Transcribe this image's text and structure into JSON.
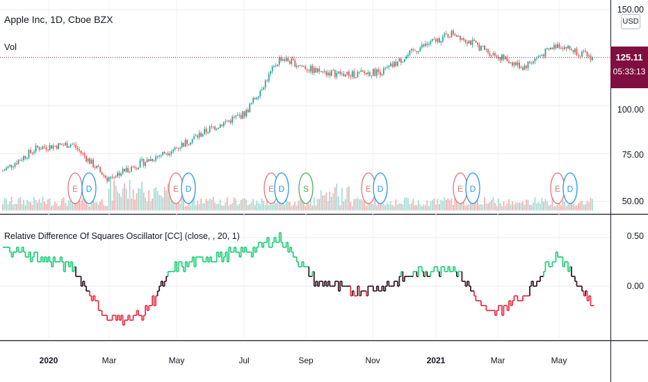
{
  "header": {
    "title": "Apple Inc, 1D, Cboe BZX",
    "volume_label": "Vol",
    "currency": "USD"
  },
  "price_axis": {
    "ticks": [
      "150.00",
      "125.11",
      "100.00",
      "75.00",
      "50.00"
    ],
    "current_price": "125.11",
    "countdown": "05:33:13"
  },
  "oscillator": {
    "title": "Relative Difference Of Squares Oscillator [CC] (close, , 20, 1)",
    "ticks": [
      "0.50",
      "0.00"
    ]
  },
  "x_axis": {
    "ticks": [
      {
        "label": "2020",
        "bold": true
      },
      {
        "label": "Mar",
        "bold": false
      },
      {
        "label": "May",
        "bold": false
      },
      {
        "label": "Jul",
        "bold": false
      },
      {
        "label": "Sep",
        "bold": false
      },
      {
        "label": "Nov",
        "bold": false
      },
      {
        "label": "2021",
        "bold": true
      },
      {
        "label": "Mar",
        "bold": false
      },
      {
        "label": "May",
        "bold": false
      }
    ]
  },
  "events": [
    "E",
    "D",
    "E",
    "D",
    "E",
    "D",
    "S",
    "E",
    "D",
    "E",
    "D",
    "E",
    "D"
  ],
  "colors": {
    "up": "#26a69a",
    "down": "#ef5350",
    "osc_up": "#26d07c",
    "osc_down": "#e8334a",
    "osc_neutral": "#3a1a2a",
    "tag": "#7f0f3e"
  },
  "chart_data": {
    "type": "line",
    "title": "Apple Inc, 1D, Cboe BZX",
    "x": [
      "2019-12",
      "2020-01",
      "2020-02",
      "2020-03",
      "2020-04",
      "2020-05",
      "2020-06",
      "2020-07",
      "2020-08",
      "2020-09",
      "2020-10",
      "2020-11",
      "2020-12",
      "2021-01",
      "2021-02",
      "2021-03",
      "2021-04",
      "2021-05"
    ],
    "series": [
      {
        "name": "Close",
        "values": [
          66,
          78,
          80,
          62,
          70,
          78,
          88,
          96,
          125,
          118,
          116,
          118,
          130,
          138,
          128,
          120,
          132,
          125
        ]
      },
      {
        "name": "Relative Difference Of Squares Oscillator",
        "values": [
          0.4,
          0.3,
          0.2,
          -0.35,
          -0.3,
          0.2,
          0.3,
          0.35,
          0.5,
          0.05,
          -0.05,
          0.0,
          0.15,
          0.2,
          -0.3,
          -0.1,
          0.35,
          -0.2
        ]
      }
    ],
    "ylim": [
      45,
      152
    ],
    "osc_ylim": [
      -0.6,
      0.6
    ]
  }
}
